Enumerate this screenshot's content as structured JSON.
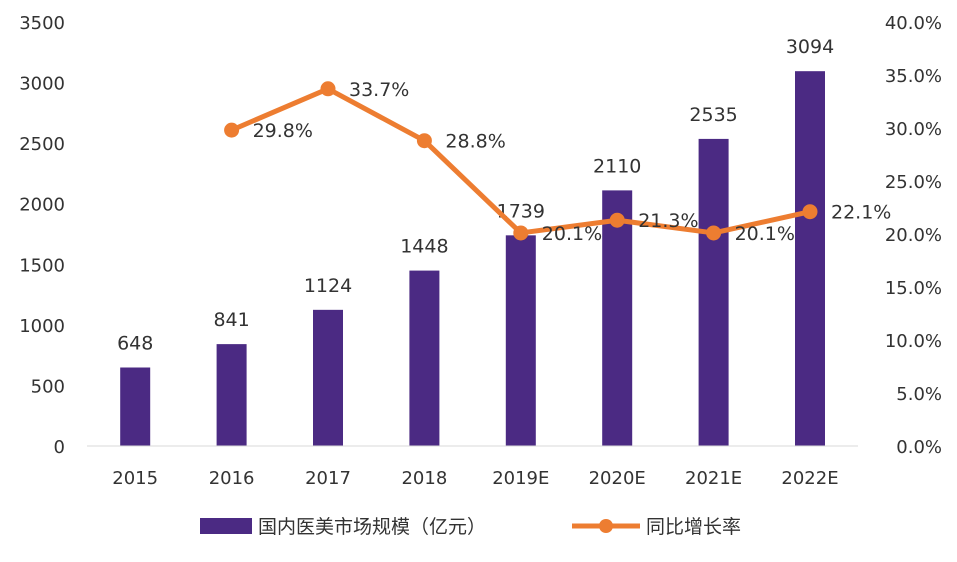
{
  "chart_data": {
    "type": "bar+line",
    "categories": [
      "2015",
      "2016",
      "2017",
      "2018",
      "2019E",
      "2020E",
      "2021E",
      "2022E"
    ],
    "series": [
      {
        "name": "国内医美市场规模（亿元）",
        "type": "bar",
        "axis": "left",
        "color": "#4B2A83",
        "values": [
          648,
          841,
          1124,
          1448,
          1739,
          2110,
          2535,
          3094
        ],
        "labels": [
          "648",
          "841",
          "1124",
          "1448",
          "1739",
          "2110",
          "2535",
          "3094"
        ]
      },
      {
        "name": "同比增长率",
        "type": "line",
        "axis": "right",
        "color": "#ED7D31",
        "values": [
          null,
          29.8,
          33.7,
          28.8,
          20.1,
          21.3,
          20.1,
          22.1
        ],
        "labels": [
          "",
          "29.8%",
          "33.7%",
          "28.8%",
          "20.1%",
          "21.3%",
          "20.1%",
          "22.1%"
        ]
      }
    ],
    "left_axis": {
      "min": 0,
      "max": 3500,
      "ticks": [
        "0",
        "500",
        "1000",
        "1500",
        "2000",
        "2500",
        "3000",
        "3500"
      ]
    },
    "right_axis": {
      "min": 0,
      "max": 40,
      "ticks": [
        "0.0%",
        "5.0%",
        "10.0%",
        "15.0%",
        "20.0%",
        "25.0%",
        "30.0%",
        "35.0%",
        "40.0%"
      ]
    },
    "grid": false,
    "legend": "bottom"
  }
}
